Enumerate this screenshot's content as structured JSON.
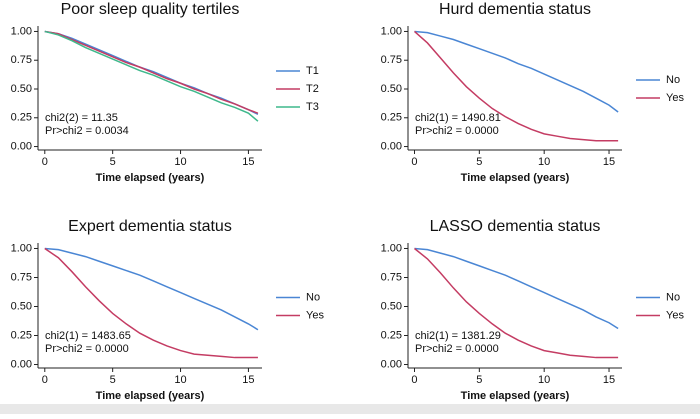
{
  "chart_data": [
    {
      "type": "line",
      "title": "Poor sleep quality tertiles",
      "xlabel": "Time elapsed (years)",
      "x": [
        0,
        1,
        2,
        3,
        4,
        5,
        6,
        7,
        8,
        9,
        10,
        11,
        12,
        13,
        14,
        15,
        15.7
      ],
      "xlim": [
        -0.5,
        16
      ],
      "xticks": [
        0,
        5,
        10,
        15
      ],
      "ylim": [
        -0.03,
        1.03
      ],
      "yticks": [
        {
          "value": 0,
          "label": "0.00"
        },
        {
          "value": 0.25,
          "label": "0.25"
        },
        {
          "value": 0.5,
          "label": "0.50"
        },
        {
          "value": 0.75,
          "label": "0.75"
        },
        {
          "value": 1,
          "label": "1.00"
        }
      ],
      "legend": "right",
      "annotations": [
        "chi2(2) =  11.35",
        "Pr>chi2 = 0.0034"
      ],
      "series": [
        {
          "name": "T1",
          "color": "#4a86d4",
          "values": [
            1.0,
            0.98,
            0.94,
            0.89,
            0.84,
            0.79,
            0.74,
            0.69,
            0.65,
            0.6,
            0.55,
            0.51,
            0.46,
            0.42,
            0.37,
            0.32,
            0.28
          ]
        },
        {
          "name": "T2",
          "color": "#c43c63",
          "values": [
            1.0,
            0.98,
            0.93,
            0.88,
            0.83,
            0.78,
            0.73,
            0.69,
            0.64,
            0.59,
            0.55,
            0.5,
            0.46,
            0.41,
            0.37,
            0.32,
            0.29
          ]
        },
        {
          "name": "T3",
          "color": "#3fb88c",
          "values": [
            1.0,
            0.97,
            0.92,
            0.86,
            0.81,
            0.76,
            0.71,
            0.66,
            0.62,
            0.57,
            0.52,
            0.48,
            0.43,
            0.38,
            0.34,
            0.29,
            0.22
          ]
        }
      ]
    },
    {
      "type": "line",
      "title": "Hurd dementia status",
      "xlabel": "Time elapsed (years)",
      "x": [
        0,
        1,
        2,
        3,
        4,
        5,
        6,
        7,
        8,
        9,
        10,
        11,
        12,
        13,
        14,
        15,
        15.7
      ],
      "xlim": [
        -0.5,
        16
      ],
      "xticks": [
        0,
        5,
        10,
        15
      ],
      "ylim": [
        -0.03,
        1.03
      ],
      "yticks": [
        {
          "value": 0,
          "label": "0.00"
        },
        {
          "value": 0.25,
          "label": "0.25"
        },
        {
          "value": 0.5,
          "label": "0.50"
        },
        {
          "value": 0.75,
          "label": "0.75"
        },
        {
          "value": 1,
          "label": "1.00"
        }
      ],
      "legend": "right",
      "annotations": [
        "chi2(1) = 1490.81",
        "Pr>chi2 =  0.0000"
      ],
      "series": [
        {
          "name": "No",
          "color": "#4a86d4",
          "values": [
            1.0,
            0.99,
            0.96,
            0.93,
            0.89,
            0.85,
            0.81,
            0.77,
            0.72,
            0.68,
            0.63,
            0.58,
            0.53,
            0.48,
            0.42,
            0.36,
            0.3
          ]
        },
        {
          "name": "Yes",
          "color": "#c43c63",
          "values": [
            1.0,
            0.9,
            0.77,
            0.64,
            0.52,
            0.42,
            0.33,
            0.26,
            0.2,
            0.15,
            0.11,
            0.09,
            0.07,
            0.06,
            0.05,
            0.05,
            0.05
          ]
        }
      ]
    },
    {
      "type": "line",
      "title": "Expert dementia status",
      "xlabel": "Time elapsed (years)",
      "x": [
        0,
        1,
        2,
        3,
        4,
        5,
        6,
        7,
        8,
        9,
        10,
        11,
        12,
        13,
        14,
        15,
        15.7
      ],
      "xlim": [
        -0.5,
        16
      ],
      "xticks": [
        0,
        5,
        10,
        15
      ],
      "ylim": [
        -0.03,
        1.03
      ],
      "yticks": [
        {
          "value": 0,
          "label": "0.00"
        },
        {
          "value": 0.25,
          "label": "0.25"
        },
        {
          "value": 0.5,
          "label": "0.50"
        },
        {
          "value": 0.75,
          "label": "0.75"
        },
        {
          "value": 1,
          "label": "1.00"
        }
      ],
      "legend": "right",
      "annotations": [
        "chi2(1) = 1483.65",
        "Pr>chi2 =  0.0000"
      ],
      "series": [
        {
          "name": "No",
          "color": "#4a86d4",
          "values": [
            1.0,
            0.99,
            0.96,
            0.93,
            0.89,
            0.85,
            0.81,
            0.77,
            0.72,
            0.67,
            0.62,
            0.57,
            0.52,
            0.47,
            0.41,
            0.35,
            0.3
          ]
        },
        {
          "name": "Yes",
          "color": "#c43c63",
          "values": [
            1.0,
            0.92,
            0.8,
            0.67,
            0.55,
            0.44,
            0.35,
            0.27,
            0.21,
            0.16,
            0.12,
            0.09,
            0.08,
            0.07,
            0.06,
            0.06,
            0.06
          ]
        }
      ]
    },
    {
      "type": "line",
      "title": "LASSO dementia status",
      "xlabel": "Time elapsed (years)",
      "x": [
        0,
        1,
        2,
        3,
        4,
        5,
        6,
        7,
        8,
        9,
        10,
        11,
        12,
        13,
        14,
        15,
        15.7
      ],
      "xlim": [
        -0.5,
        16
      ],
      "xticks": [
        0,
        5,
        10,
        15
      ],
      "ylim": [
        -0.03,
        1.03
      ],
      "yticks": [
        {
          "value": 0,
          "label": "0.00"
        },
        {
          "value": 0.25,
          "label": "0.25"
        },
        {
          "value": 0.5,
          "label": "0.50"
        },
        {
          "value": 0.75,
          "label": "0.75"
        },
        {
          "value": 1,
          "label": "1.00"
        }
      ],
      "legend": "right",
      "annotations": [
        "chi2(1) = 1381.29",
        "Pr>chi2 =  0.0000"
      ],
      "series": [
        {
          "name": "No",
          "color": "#4a86d4",
          "values": [
            1.0,
            0.99,
            0.96,
            0.93,
            0.89,
            0.85,
            0.81,
            0.77,
            0.72,
            0.67,
            0.62,
            0.57,
            0.52,
            0.47,
            0.41,
            0.36,
            0.31
          ]
        },
        {
          "name": "Yes",
          "color": "#c43c63",
          "values": [
            1.0,
            0.91,
            0.79,
            0.66,
            0.54,
            0.44,
            0.35,
            0.27,
            0.21,
            0.16,
            0.12,
            0.1,
            0.08,
            0.07,
            0.06,
            0.06,
            0.06
          ]
        }
      ]
    }
  ]
}
